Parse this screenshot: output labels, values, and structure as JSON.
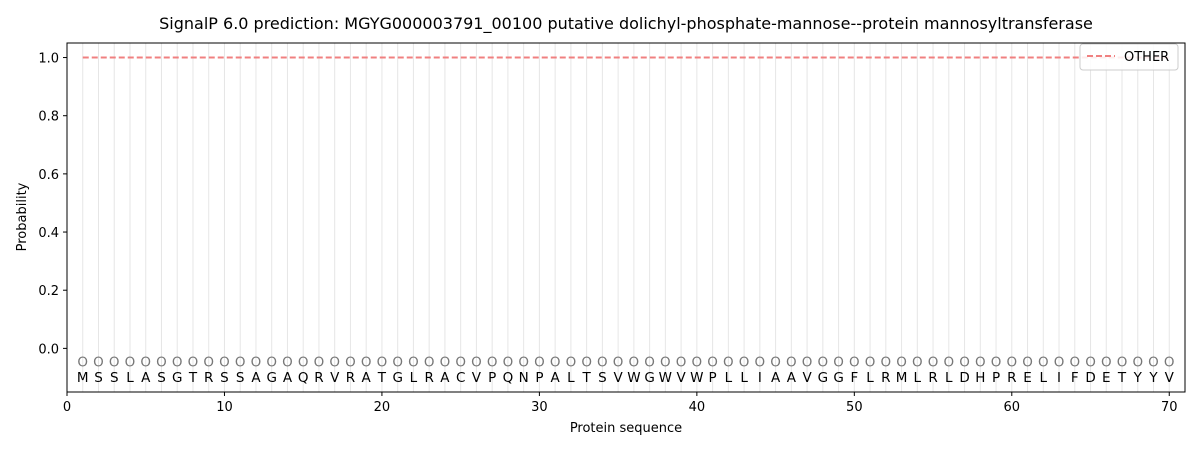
{
  "chart_data": {
    "type": "line",
    "title": "SignalP 6.0 prediction: MGYG000003791_00100 putative dolichyl-phosphate-mannose--protein mannosyltransferase",
    "xlabel": "Protein sequence",
    "ylabel": "Probability",
    "xlim": [
      0,
      71
    ],
    "ylim": [
      -0.15,
      1.05
    ],
    "xticks": [
      0,
      10,
      20,
      30,
      40,
      50,
      60,
      70
    ],
    "yticks": [
      0.0,
      0.2,
      0.4,
      0.6,
      0.8,
      1.0
    ],
    "ytick_labels": [
      "0.0",
      "0.2",
      "0.4",
      "0.6",
      "0.8",
      "1.0"
    ],
    "legend_position": "top-right",
    "residues": [
      "M",
      "S",
      "S",
      "L",
      "A",
      "S",
      "G",
      "T",
      "R",
      "S",
      "S",
      "A",
      "G",
      "A",
      "Q",
      "R",
      "V",
      "R",
      "A",
      "T",
      "G",
      "L",
      "R",
      "A",
      "C",
      "V",
      "P",
      "Q",
      "N",
      "P",
      "A",
      "L",
      "T",
      "S",
      "V",
      "W",
      "G",
      "W",
      "V",
      "W",
      "P",
      "L",
      "L",
      "I",
      "A",
      "A",
      "V",
      "G",
      "G",
      "F",
      "L",
      "R",
      "M",
      "L",
      "R",
      "L",
      "D",
      "H",
      "P",
      "R",
      "E",
      "L",
      "I",
      "F",
      "D",
      "E",
      "T",
      "Y",
      "Y",
      "V"
    ],
    "region_label": "O",
    "region_y": -0.045,
    "series": [
      {
        "name": "OTHER",
        "color": "#f08080",
        "style": "dashed",
        "x_start": 1,
        "x_end": 70,
        "value": 1.0
      }
    ]
  }
}
